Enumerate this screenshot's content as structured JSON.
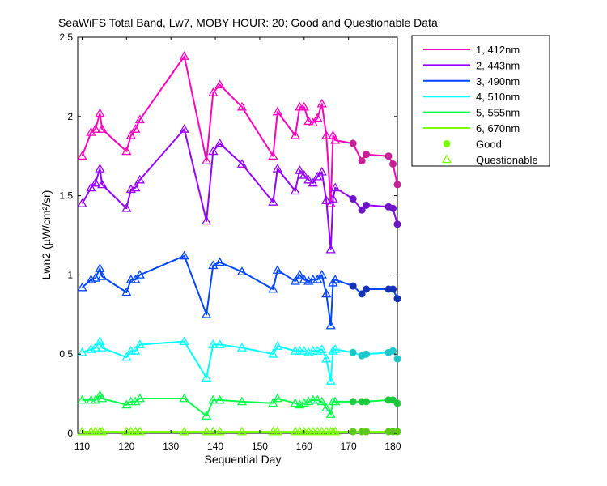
{
  "chart_data": {
    "type": "line",
    "title": "SeaWiFS Total Band, Lw7, MOBY HOUR: 20;  Good and Questionable Data",
    "xlabel": "Sequential Day",
    "ylabel": "Lwn2 (µW/cm²/sr)",
    "xlim": [
      109,
      181
    ],
    "ylim": [
      0,
      2.5
    ],
    "xticks": [
      110,
      120,
      130,
      140,
      150,
      160,
      170,
      180
    ],
    "yticks": [
      0,
      0.5,
      1,
      1.5,
      2,
      2.5
    ],
    "grid": false,
    "legend_position": "outside-top-right",
    "x": [
      110,
      112,
      113,
      114,
      114.5,
      120,
      121,
      122,
      123,
      133,
      138,
      139.5,
      141,
      146,
      153,
      154,
      158,
      159,
      160,
      161,
      162,
      163,
      164,
      165,
      166,
      166.5,
      167,
      171,
      173,
      174,
      179,
      180,
      181
    ],
    "quality": [
      "q",
      "q",
      "q",
      "q",
      "q",
      "q",
      "q",
      "q",
      "q",
      "q",
      "q",
      "q",
      "q",
      "q",
      "q",
      "q",
      "q",
      "q",
      "q",
      "q",
      "q",
      "q",
      "q",
      "q",
      "q",
      "q",
      "q",
      "g",
      "g",
      "g",
      "g",
      "g",
      "g"
    ],
    "series": [
      {
        "name": "1, 412nm",
        "color": "#ff00bf",
        "marker_color": "#c81e96",
        "values": [
          1.75,
          1.9,
          1.92,
          2.02,
          1.92,
          1.78,
          1.88,
          1.92,
          1.98,
          2.38,
          1.72,
          2.15,
          2.2,
          2.06,
          1.75,
          2.03,
          1.88,
          2.06,
          2.06,
          1.97,
          1.96,
          1.99,
          2.08,
          1.88,
          1.45,
          1.88,
          1.85,
          1.83,
          1.72,
          1.76,
          1.75,
          1.7,
          1.57
        ]
      },
      {
        "name": "2, 443nm",
        "color": "#9400ff",
        "marker_color": "#6e14c8",
        "values": [
          1.45,
          1.55,
          1.58,
          1.67,
          1.57,
          1.42,
          1.54,
          1.55,
          1.6,
          1.92,
          1.34,
          1.78,
          1.83,
          1.7,
          1.46,
          1.67,
          1.53,
          1.66,
          1.63,
          1.6,
          1.58,
          1.62,
          1.65,
          1.47,
          1.16,
          1.48,
          1.55,
          1.48,
          1.41,
          1.44,
          1.43,
          1.42,
          1.32
        ]
      },
      {
        "name": "3, 490nm",
        "color": "#0046ff",
        "marker_color": "#1432b4",
        "values": [
          0.92,
          0.97,
          0.98,
          1.04,
          0.99,
          0.89,
          0.97,
          0.97,
          1.0,
          1.12,
          0.75,
          1.06,
          1.08,
          1.02,
          0.91,
          1.03,
          0.96,
          1.0,
          0.97,
          0.96,
          0.97,
          0.97,
          1.0,
          0.88,
          0.68,
          0.95,
          0.97,
          0.93,
          0.88,
          0.91,
          0.91,
          0.91,
          0.85
        ]
      },
      {
        "name": "4, 510nm",
        "color": "#00ffff",
        "marker_color": "#1ec8c8",
        "values": [
          0.51,
          0.53,
          0.54,
          0.58,
          0.54,
          0.48,
          0.52,
          0.52,
          0.56,
          0.58,
          0.35,
          0.56,
          0.56,
          0.54,
          0.5,
          0.55,
          0.52,
          0.52,
          0.52,
          0.51,
          0.52,
          0.52,
          0.53,
          0.47,
          0.33,
          0.52,
          0.53,
          0.51,
          0.49,
          0.5,
          0.51,
          0.52,
          0.47
        ]
      },
      {
        "name": "5, 555nm",
        "color": "#00ff46",
        "marker_color": "#1ec83c",
        "values": [
          0.21,
          0.21,
          0.21,
          0.24,
          0.22,
          0.18,
          0.2,
          0.2,
          0.22,
          0.22,
          0.11,
          0.21,
          0.21,
          0.2,
          0.19,
          0.22,
          0.19,
          0.18,
          0.19,
          0.2,
          0.21,
          0.21,
          0.2,
          0.16,
          0.12,
          0.2,
          0.2,
          0.2,
          0.2,
          0.2,
          0.21,
          0.21,
          0.19
        ]
      },
      {
        "name": "6, 670nm",
        "color": "#78ff00",
        "marker_color": "#5ac814",
        "values": [
          0.01,
          0.01,
          0.01,
          0.01,
          0.01,
          0.01,
          0.01,
          0.01,
          0.01,
          0.01,
          0.01,
          0.01,
          0.01,
          0.01,
          0.01,
          0.01,
          0.01,
          0.01,
          0.01,
          0.01,
          0.01,
          0.01,
          0.01,
          0.01,
          0.01,
          0.01,
          0.01,
          0.01,
          0.01,
          0.01,
          0.01,
          0.01,
          0.01
        ]
      }
    ],
    "legend_markers": [
      {
        "label": "Good",
        "marker": "circle",
        "color": "#78ff00"
      },
      {
        "label": "Questionable",
        "marker": "triangle",
        "color": "#78ff00"
      }
    ]
  }
}
